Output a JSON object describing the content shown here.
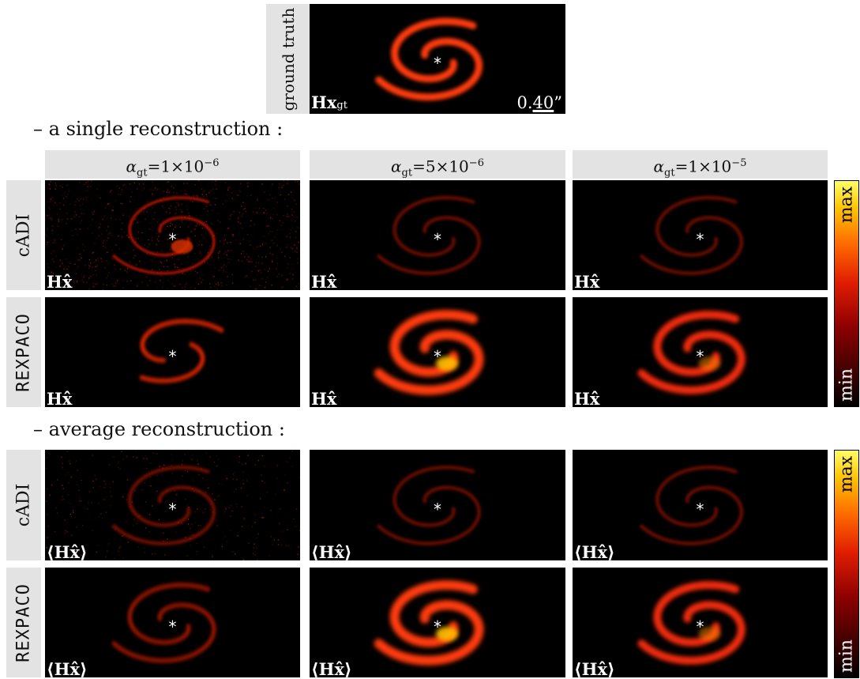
{
  "ground_truth": {
    "row_label": "ground truth",
    "panel_label": "Hx",
    "panel_label_sub": "gt",
    "scale_prefix": "0.",
    "scale_underlined": "40",
    "scale_suffix": "”"
  },
  "sections": {
    "single": "– a single reconstruction :",
    "average": "– average reconstruction :"
  },
  "columns": [
    {
      "alpha": "α",
      "sub": "gt",
      "eq": "=1×10",
      "exp": "−6"
    },
    {
      "alpha": "α",
      "sub": "gt",
      "eq": "=5×10",
      "exp": "−6"
    },
    {
      "alpha": "α",
      "sub": "gt",
      "eq": "=1×10",
      "exp": "−5"
    }
  ],
  "rows": {
    "cadi": "cADI",
    "rexpaco": "REXPACO"
  },
  "panel_labels": {
    "single": "Hx̂",
    "average": "⟨Hx̂⟩"
  },
  "colorbar": {
    "max": "max",
    "min": "min",
    "colors": [
      "#000000",
      "#8c0000",
      "#e01d00",
      "#ff6a00",
      "#ffc400",
      "#ffff66"
    ]
  },
  "star_symbol": "*"
}
